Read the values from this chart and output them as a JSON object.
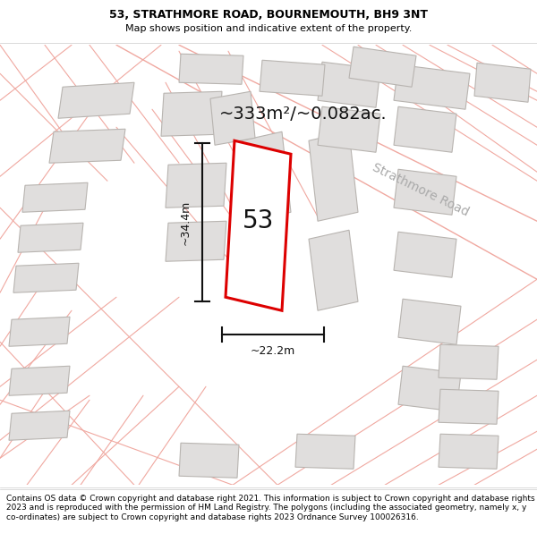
{
  "title": "53, STRATHMORE ROAD, BOURNEMOUTH, BH9 3NT",
  "subtitle": "Map shows position and indicative extent of the property.",
  "area_text": "~333m²/~0.082ac.",
  "width_label": "~22.2m",
  "height_label": "~34.4m",
  "road_label": "Strathmore Road",
  "plot_number": "53",
  "footer": "Contains OS data © Crown copyright and database right 2021. This information is subject to Crown copyright and database rights 2023 and is reproduced with the permission of HM Land Registry. The polygons (including the associated geometry, namely x, y co-ordinates) are subject to Crown copyright and database rights 2023 Ordnance Survey 100026316.",
  "bg_color": "#ffffff",
  "highlight_color": "#dd0000",
  "building_fill": "#e0dedd",
  "building_edge": "#b8b4b0",
  "parcel_line_color": "#f0a8a0",
  "road_fill": "#f5f0ef",
  "title_fontsize": 9,
  "subtitle_fontsize": 8,
  "footer_fontsize": 6.5,
  "area_fontsize": 14,
  "measure_fontsize": 9,
  "road_label_fontsize": 10,
  "plot_label_fontsize": 20
}
